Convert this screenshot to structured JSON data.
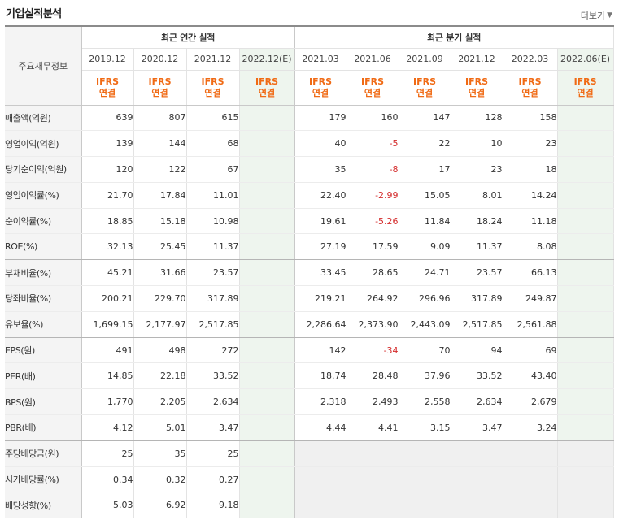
{
  "header": {
    "title": "기업실적분석",
    "more_label": "더보기",
    "more_arrow": "▼"
  },
  "table": {
    "row_label_header": "주요재무정보",
    "annual_group": "최근 연간 실적",
    "quarterly_group": "최근 분기 실적",
    "annual_periods": [
      "2019.12",
      "2020.12",
      "2021.12",
      "2022.12(E)"
    ],
    "quarterly_periods": [
      "2021.03",
      "2021.06",
      "2021.09",
      "2021.12",
      "2022.03",
      "2022.06(E)"
    ],
    "ifrs_line1": "IFRS",
    "ifrs_line2": "연결",
    "rows": [
      {
        "label": "매출액(억원)",
        "annual": [
          "639",
          "807",
          "615",
          ""
        ],
        "quarterly": [
          "179",
          "160",
          "147",
          "128",
          "158",
          ""
        ]
      },
      {
        "label": "영업이익(억원)",
        "annual": [
          "139",
          "144",
          "68",
          ""
        ],
        "quarterly": [
          "40",
          "-5",
          "22",
          "10",
          "23",
          ""
        ]
      },
      {
        "label": "당기순이익(억원)",
        "annual": [
          "120",
          "122",
          "67",
          ""
        ],
        "quarterly": [
          "35",
          "-8",
          "17",
          "23",
          "18",
          ""
        ]
      },
      {
        "label": "영업이익률(%)",
        "annual": [
          "21.70",
          "17.84",
          "11.01",
          ""
        ],
        "quarterly": [
          "22.40",
          "-2.99",
          "15.05",
          "8.01",
          "14.24",
          ""
        ]
      },
      {
        "label": "순이익률(%)",
        "annual": [
          "18.85",
          "15.18",
          "10.98",
          ""
        ],
        "quarterly": [
          "19.61",
          "-5.26",
          "11.84",
          "18.24",
          "11.18",
          ""
        ]
      },
      {
        "label": "ROE(%)",
        "annual": [
          "32.13",
          "25.45",
          "11.37",
          ""
        ],
        "quarterly": [
          "27.19",
          "17.59",
          "9.09",
          "11.37",
          "8.08",
          ""
        ]
      },
      {
        "label": "부채비율(%)",
        "annual": [
          "45.21",
          "31.66",
          "23.57",
          ""
        ],
        "quarterly": [
          "33.45",
          "28.65",
          "24.71",
          "23.57",
          "66.13",
          ""
        ]
      },
      {
        "label": "당좌비율(%)",
        "annual": [
          "200.21",
          "229.70",
          "317.89",
          ""
        ],
        "quarterly": [
          "219.21",
          "264.92",
          "296.96",
          "317.89",
          "249.87",
          ""
        ]
      },
      {
        "label": "유보율(%)",
        "annual": [
          "1,699.15",
          "2,177.97",
          "2,517.85",
          ""
        ],
        "quarterly": [
          "2,286.64",
          "2,373.90",
          "2,443.09",
          "2,517.85",
          "2,561.88",
          ""
        ]
      },
      {
        "label": "EPS(원)",
        "annual": [
          "491",
          "498",
          "272",
          ""
        ],
        "quarterly": [
          "142",
          "-34",
          "70",
          "94",
          "69",
          ""
        ]
      },
      {
        "label": "PER(배)",
        "annual": [
          "14.85",
          "22.18",
          "33.52",
          ""
        ],
        "quarterly": [
          "18.74",
          "28.48",
          "37.96",
          "33.52",
          "43.40",
          ""
        ]
      },
      {
        "label": "BPS(원)",
        "annual": [
          "1,770",
          "2,205",
          "2,634",
          ""
        ],
        "quarterly": [
          "2,318",
          "2,493",
          "2,558",
          "2,634",
          "2,679",
          ""
        ]
      },
      {
        "label": "PBR(배)",
        "annual": [
          "4.12",
          "5.01",
          "3.47",
          ""
        ],
        "quarterly": [
          "4.44",
          "4.41",
          "3.15",
          "3.47",
          "3.24",
          ""
        ]
      },
      {
        "label": "주당배당금(원)",
        "annual": [
          "25",
          "35",
          "25",
          ""
        ],
        "quarterly": [
          "",
          "",
          "",
          "",
          "",
          ""
        ]
      },
      {
        "label": "시가배당률(%)",
        "annual": [
          "0.34",
          "0.32",
          "0.27",
          ""
        ],
        "quarterly": [
          "",
          "",
          "",
          "",
          "",
          ""
        ]
      },
      {
        "label": "배당성향(%)",
        "annual": [
          "5.03",
          "6.92",
          "9.18",
          ""
        ],
        "quarterly": [
          "",
          "",
          "",
          "",
          "",
          ""
        ]
      }
    ]
  },
  "colors": {
    "ifrs_text": "#f06a14",
    "negative_value": "#d42b2b",
    "estimate_bg": "#eef5ee"
  }
}
